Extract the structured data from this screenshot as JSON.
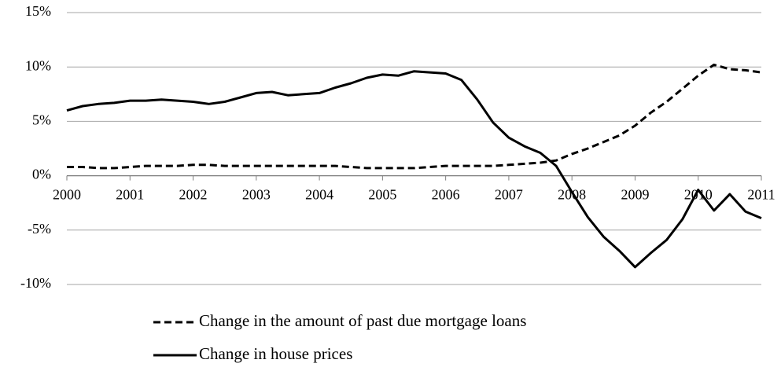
{
  "chart_data": {
    "type": "line",
    "x": [
      2000,
      2000.25,
      2000.5,
      2000.75,
      2001,
      2001.25,
      2001.5,
      2001.75,
      2002,
      2002.25,
      2002.5,
      2002.75,
      2003,
      2003.25,
      2003.5,
      2003.75,
      2004,
      2004.25,
      2004.5,
      2004.75,
      2005,
      2005.25,
      2005.5,
      2005.75,
      2006,
      2006.25,
      2006.5,
      2006.75,
      2007,
      2007.25,
      2007.5,
      2007.75,
      2008,
      2008.25,
      2008.5,
      2008.75,
      2009,
      2009.25,
      2009.5,
      2009.75,
      2010,
      2010.25,
      2010.5,
      2010.75,
      2011
    ],
    "series": [
      {
        "name": "Change in the amount of past due mortgage loans",
        "color": "#000000",
        "line_style": "dashed",
        "values": [
          0.8,
          0.8,
          0.7,
          0.7,
          0.8,
          0.9,
          0.9,
          0.9,
          1.0,
          1.0,
          0.9,
          0.9,
          0.9,
          0.9,
          0.9,
          0.9,
          0.9,
          0.9,
          0.8,
          0.7,
          0.7,
          0.7,
          0.7,
          0.8,
          0.9,
          0.9,
          0.9,
          0.9,
          1.0,
          1.1,
          1.2,
          1.4,
          2.0,
          2.5,
          3.1,
          3.7,
          4.6,
          5.8,
          6.8,
          8.0,
          9.2,
          10.2,
          9.8,
          9.7,
          9.5
        ]
      },
      {
        "name": "Change in house prices",
        "color": "#000000",
        "line_style": "solid",
        "values": [
          6.0,
          6.4,
          6.6,
          6.7,
          6.9,
          6.9,
          7.0,
          6.9,
          6.8,
          6.6,
          6.8,
          7.2,
          7.6,
          7.7,
          7.4,
          7.5,
          7.6,
          8.1,
          8.5,
          9.0,
          9.3,
          9.2,
          9.6,
          9.5,
          9.4,
          8.8,
          7.0,
          4.9,
          3.5,
          2.7,
          2.1,
          0.9,
          -1.5,
          -3.8,
          -5.6,
          -6.9,
          -8.4,
          -7.1,
          -5.9,
          -4.0,
          -1.3,
          -3.2,
          -1.7,
          -3.3,
          -3.9
        ]
      }
    ],
    "xlim": [
      2000,
      2011
    ],
    "xticks": [
      2000,
      2001,
      2002,
      2003,
      2004,
      2005,
      2006,
      2007,
      2008,
      2009,
      2010,
      2011
    ],
    "ylim": [
      -10,
      15
    ],
    "yticks": [
      {
        "value": -10,
        "label": "-10%"
      },
      {
        "value": -5,
        "label": "-5%"
      },
      {
        "value": 0,
        "label": "0%"
      },
      {
        "value": 5,
        "label": "5%"
      },
      {
        "value": 10,
        "label": "10%"
      },
      {
        "value": 15,
        "label": "15%"
      }
    ],
    "grid": true,
    "legend": "bottom"
  }
}
